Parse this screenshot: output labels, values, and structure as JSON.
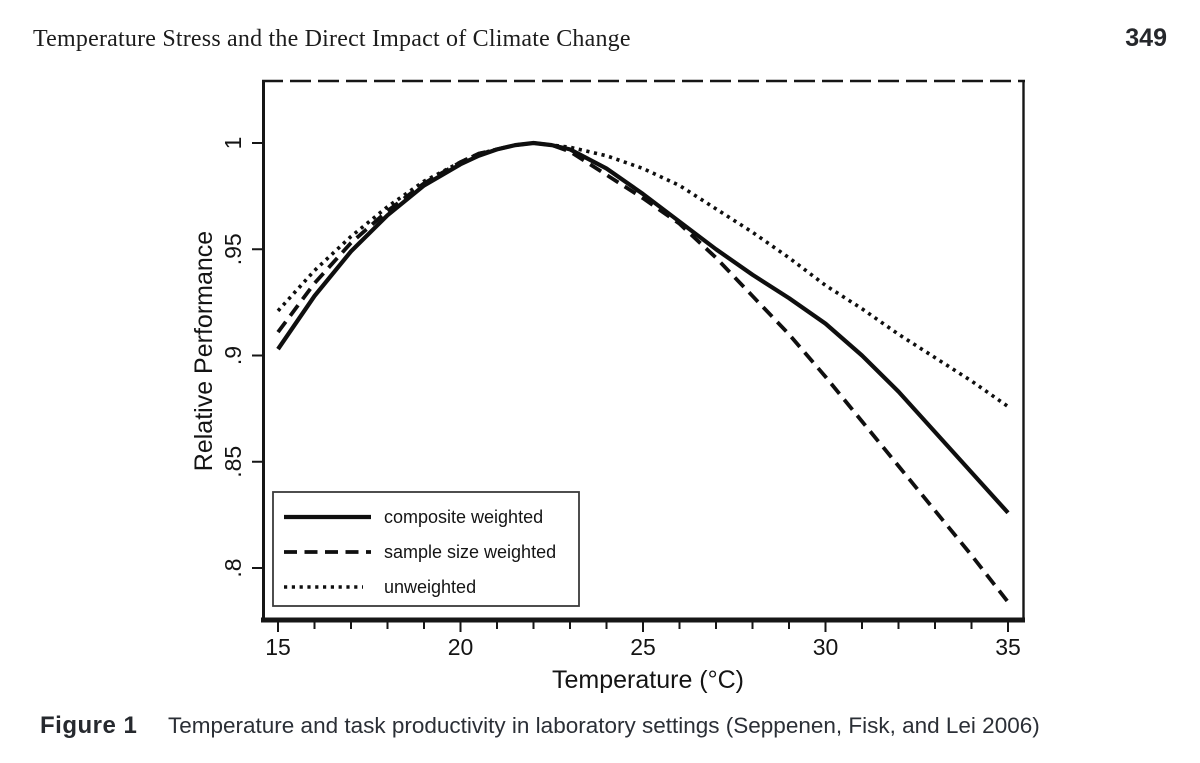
{
  "page": {
    "running_head": "Temperature Stress and the Direct Impact of Climate Change",
    "page_number": "349"
  },
  "figure": {
    "label": "Figure 1",
    "caption": "Temperature and task productivity in laboratory settings (Seppenen, Fisk, and Lei 2006)"
  },
  "chart_data": {
    "type": "line",
    "title": "",
    "xlabel": "Temperature (°C)",
    "ylabel": "Relative Performance",
    "xlim": [
      15,
      35
    ],
    "ylim": [
      0.775,
      1.005
    ],
    "grid": false,
    "legend_position": "lower-left",
    "x_ticks": [
      {
        "value": 15,
        "label": "15"
      },
      {
        "value": 20,
        "label": "20"
      },
      {
        "value": 25,
        "label": "25"
      },
      {
        "value": 30,
        "label": "30"
      },
      {
        "value": 35,
        "label": "35"
      }
    ],
    "x_minor_tick_step": 1,
    "y_ticks": [
      {
        "value": 1.0,
        "label": "1"
      },
      {
        "value": 0.95,
        "label": ".95"
      },
      {
        "value": 0.9,
        "label": ".9"
      },
      {
        "value": 0.85,
        "label": ".85"
      },
      {
        "value": 0.8,
        "label": ".8"
      }
    ],
    "x": [
      15,
      16,
      17,
      18,
      19,
      20,
      20.5,
      21,
      21.5,
      22,
      22.5,
      23,
      24,
      25,
      26,
      27,
      28,
      29,
      30,
      31,
      32,
      33,
      34,
      35
    ],
    "series": [
      {
        "name": "composite weighted",
        "style": "solid",
        "values": [
          0.903,
          0.928,
          0.949,
          0.966,
          0.98,
          0.99,
          0.994,
          0.997,
          0.999,
          1.0,
          0.999,
          0.997,
          0.988,
          0.976,
          0.963,
          0.95,
          0.938,
          0.927,
          0.915,
          0.9,
          0.883,
          0.864,
          0.845,
          0.826
        ]
      },
      {
        "name": "sample size weighted",
        "style": "dashed",
        "values": [
          0.911,
          0.934,
          0.953,
          0.968,
          0.981,
          0.991,
          0.995,
          0.997,
          0.999,
          1.0,
          0.999,
          0.996,
          0.985,
          0.974,
          0.962,
          0.946,
          0.928,
          0.91,
          0.89,
          0.869,
          0.848,
          0.827,
          0.806,
          0.784
        ]
      },
      {
        "name": "unweighted",
        "style": "dotted",
        "values": [
          0.921,
          0.94,
          0.956,
          0.97,
          0.982,
          0.991,
          0.995,
          0.997,
          0.999,
          1.0,
          0.999,
          0.998,
          0.994,
          0.988,
          0.98,
          0.969,
          0.958,
          0.946,
          0.933,
          0.922,
          0.91,
          0.899,
          0.888,
          0.876
        ]
      }
    ]
  }
}
